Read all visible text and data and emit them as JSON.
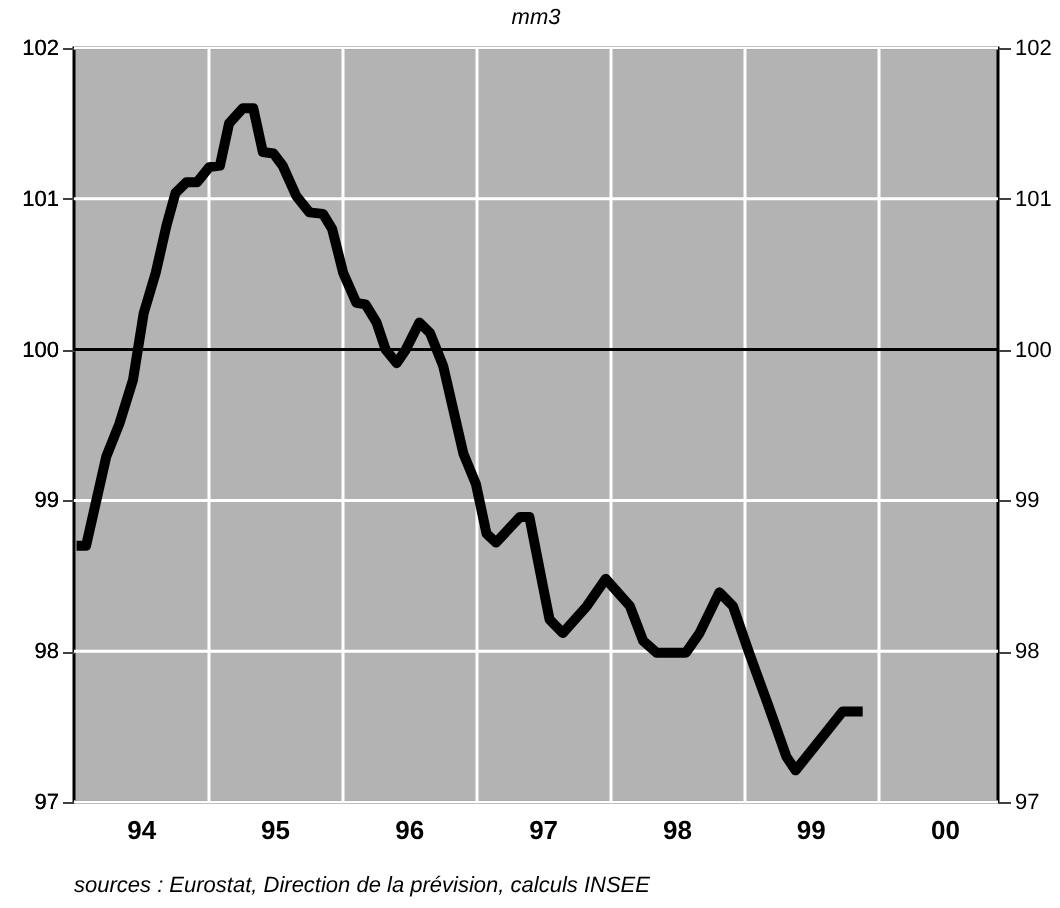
{
  "chart_data": {
    "type": "line",
    "title": "mm3",
    "x": [
      "1994-01-08",
      "1994-02-03",
      "1994-03-30",
      "1994-05-05",
      "1994-06-11",
      "1994-07-10",
      "1994-08-12",
      "1994-09-10",
      "1994-10-05",
      "1994-11-04",
      "1994-12-03",
      "1995-01-05",
      "1995-02-03",
      "1995-02-28",
      "1995-04-06",
      "1995-05-05",
      "1995-05-31",
      "1995-06-29",
      "1995-07-24",
      "1995-08-30",
      "1995-10-05",
      "1995-11-11",
      "1995-12-06",
      "1996-01-05",
      "1996-02-10",
      "1996-03-06",
      "1996-04-05",
      "1996-04-30",
      "1996-05-30",
      "1996-06-24",
      "1996-07-31",
      "1996-08-29",
      "1996-10-04",
      "1996-11-28",
      "1997-01-01",
      "1997-01-30",
      "1997-02-25",
      "1997-05-01",
      "1997-05-27",
      "1997-07-03",
      "1997-07-21",
      "1997-08-26",
      "1997-10-31",
      "1997-12-21",
      "1998-02-25",
      "1998-04-02",
      "1998-05-09",
      "1998-07-28",
      "1998-09-03",
      "1998-10-27",
      "1998-12-03",
      "1999-01-16",
      "1999-03-11",
      "1999-04-28",
      "1999-05-23",
      "1999-07-28",
      "1999-09-28",
      "1999-11-22"
    ],
    "series": [
      {
        "color": "#000000",
        "values": [
          98.7,
          98.7,
          99.29,
          99.51,
          99.8,
          100.24,
          100.51,
          100.82,
          101.04,
          101.11,
          101.11,
          101.21,
          101.22,
          101.5,
          101.6,
          101.6,
          101.31,
          101.3,
          101.22,
          101.02,
          100.91,
          100.9,
          100.8,
          100.51,
          100.31,
          100.3,
          100.18,
          100.0,
          99.91,
          100.0,
          100.18,
          100.11,
          99.89,
          99.31,
          99.11,
          98.78,
          98.72,
          98.89,
          98.89,
          98.43,
          98.21,
          98.12,
          98.3,
          98.48,
          98.3,
          98.07,
          97.99,
          97.99,
          98.12,
          98.39,
          98.3,
          97.99,
          97.63,
          97.3,
          97.21,
          97.41,
          97.6,
          97.6
        ]
      }
    ],
    "xlim": [
      "1994-01-01",
      "2000-11-25"
    ],
    "xticks": [
      {
        "value": "1994-07-02",
        "label": "94"
      },
      {
        "value": "1995-01-01",
        "label": null
      },
      {
        "value": "1995-07-02",
        "label": "95"
      },
      {
        "value": "1996-01-01",
        "label": null
      },
      {
        "value": "1996-07-02",
        "label": "96"
      },
      {
        "value": "1997-01-01",
        "label": null
      },
      {
        "value": "1997-07-02",
        "label": "97"
      },
      {
        "value": "1998-01-01",
        "label": null
      },
      {
        "value": "1998-07-02",
        "label": "98"
      },
      {
        "value": "1999-01-01",
        "label": null
      },
      {
        "value": "1999-07-02",
        "label": "99"
      },
      {
        "value": "2000-01-01",
        "label": null
      },
      {
        "value": "2000-07-02",
        "label": "00"
      }
    ],
    "ylim": [
      97,
      102
    ],
    "yticks": [
      97,
      98,
      99,
      100,
      101,
      102
    ],
    "y2lim": [
      97,
      102
    ],
    "y2ticks": [
      97,
      98,
      99,
      100,
      101,
      102
    ],
    "ref_lines": [
      {
        "axis": "y",
        "value": 100,
        "color": "#000000"
      }
    ],
    "grid": true,
    "line_style": "solid",
    "marker": "none",
    "annotations": [
      "sources : Eurostat, Direction de la prévision, calculs INSEE"
    ]
  }
}
